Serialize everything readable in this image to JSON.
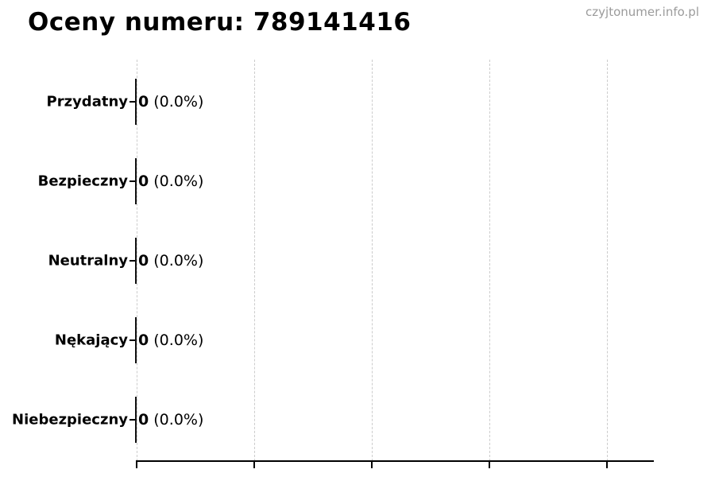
{
  "header": {
    "title": "Oceny numeru: 789141416",
    "watermark": "czyjtonumer.info.pl"
  },
  "chart_data": {
    "type": "bar",
    "orientation": "horizontal",
    "title": "Oceny numeru: 789141416",
    "categories": [
      "Przydatny",
      "Bezpieczny",
      "Neutralny",
      "Nękający",
      "Niebezpieczny"
    ],
    "values": [
      0,
      0,
      0,
      0,
      0
    ],
    "percentages": [
      0.0,
      0.0,
      0.0,
      0.0,
      0.0
    ],
    "value_texts": [
      "0",
      "0",
      "0",
      "0",
      "0"
    ],
    "percent_texts": [
      "(0.0%)",
      "(0.0%)",
      "(0.0%)",
      "(0.0%)",
      "(0.0%)"
    ],
    "value_labels": [
      "0 (0.0%)",
      "0 (0.0%)",
      "0 (0.0%)",
      "0 (0.0%)",
      "0 (0.0%)"
    ],
    "xlabel": "",
    "ylabel": "",
    "x_tick_labels": [],
    "gridline_count": 5,
    "grid": "vertical-dashed",
    "legend": "none",
    "bar_color": "#111111",
    "grid_color": "#cccccc",
    "axis_color": "#000000",
    "watermark_color": "#9b9b9b"
  }
}
